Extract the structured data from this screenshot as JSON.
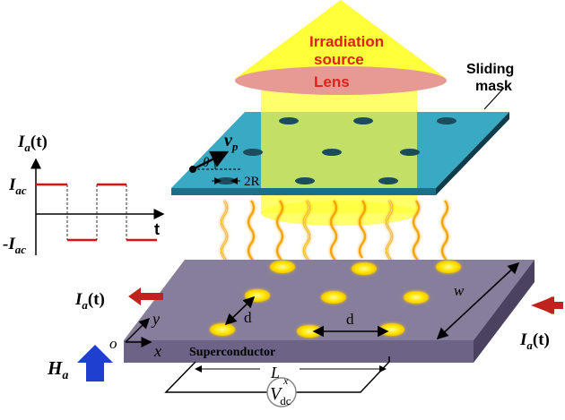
{
  "source_label_1": "Irradiation",
  "source_label_2": "source",
  "lens_label": "Lens",
  "mask_label_1": "Sliding",
  "mask_label_2": "mask",
  "velocity_symbol": "v",
  "velocity_subscript": "p",
  "angle_symbol": "θ",
  "hole_size_label": "2R",
  "ia_symbol": "I",
  "ia_subscript": "a",
  "time_arg": "(t)",
  "iac_symbol": "I",
  "iac_subscript": "ac",
  "neg_iac_prefix": "-I",
  "time_axis_label": "t",
  "spacing_label_diag": "d",
  "spacing_label_horiz": "d",
  "width_label": "w",
  "y_axis_label": "y",
  "x_axis_label": "x",
  "origin_label": "o",
  "superconductor_label": "Superconductor",
  "length_label": "L",
  "voltmeter_symbol": "V",
  "voltmeter_superscript": "x",
  "voltmeter_subscript": "dc",
  "field_symbol": "H",
  "field_subscript": "a",
  "colors": {
    "beam": "#ffff00",
    "lens": "#e79a93",
    "mask": "#3ba7c1",
    "superconductor": "#857c9a",
    "current_arrow": "#c0221e",
    "field_arrow": "#1f3fd0",
    "waveform": "#e01010",
    "spot": "#ffe800"
  }
}
